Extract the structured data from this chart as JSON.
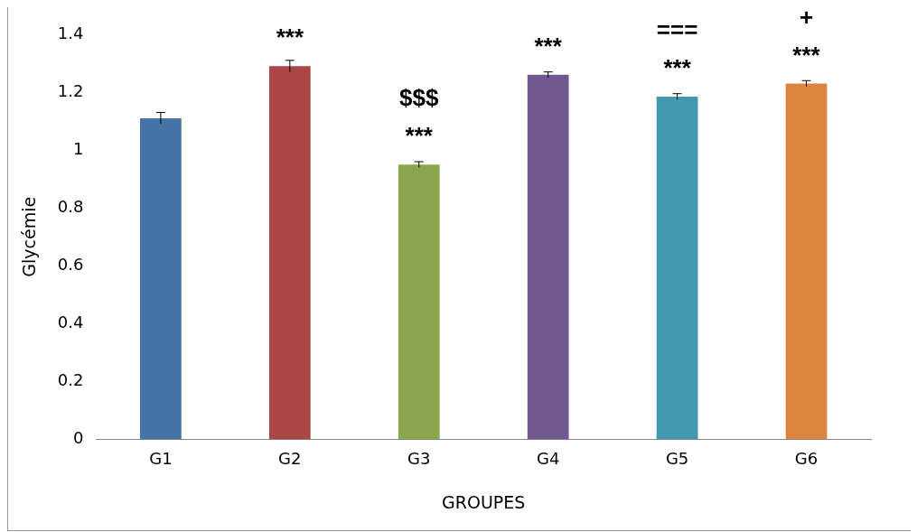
{
  "chart_data": {
    "type": "bar",
    "xlabel": "GROUPES",
    "ylabel": "Glycémie",
    "categories": [
      "G1",
      "G2",
      "G3",
      "G4",
      "G5",
      "G6"
    ],
    "values": [
      1.11,
      1.29,
      0.95,
      1.26,
      1.185,
      1.23
    ],
    "errors": [
      0.02,
      0.02,
      0.01,
      0.01,
      0.01,
      0.01
    ],
    "colors": [
      "#4573a7",
      "#aa4644",
      "#89a54e",
      "#71588f",
      "#4198af",
      "#db843d"
    ],
    "ylim": [
      0,
      1.4
    ],
    "yticks": [
      0,
      {
        "value": 0.2,
        "label": "0.2"
      },
      {
        "value": 0.4,
        "label": "0.4"
      },
      {
        "value": 0.6,
        "label": "0.6"
      },
      {
        "value": 0.8,
        "label": "0.8"
      },
      1,
      {
        "value": 1.2,
        "label": "1.2"
      },
      {
        "value": 1.4,
        "label": "1.4"
      }
    ],
    "grid": false,
    "legend": false,
    "annotations": [
      {
        "text": "***",
        "x": "G2",
        "y": 1.29
      },
      {
        "text": "***",
        "x": "G3",
        "y": 0.95
      },
      {
        "text": "$$$",
        "x": "G3",
        "y": 0.95
      },
      {
        "text": "***",
        "x": "G4",
        "y": 1.26
      },
      {
        "text": "***",
        "x": "G5",
        "y": 1.185
      },
      {
        "text": "===",
        "x": "G5",
        "y": 1.185
      },
      {
        "text": "***",
        "x": "G6",
        "y": 1.23
      },
      {
        "text": "+",
        "x": "G6",
        "y": 1.23
      }
    ]
  }
}
